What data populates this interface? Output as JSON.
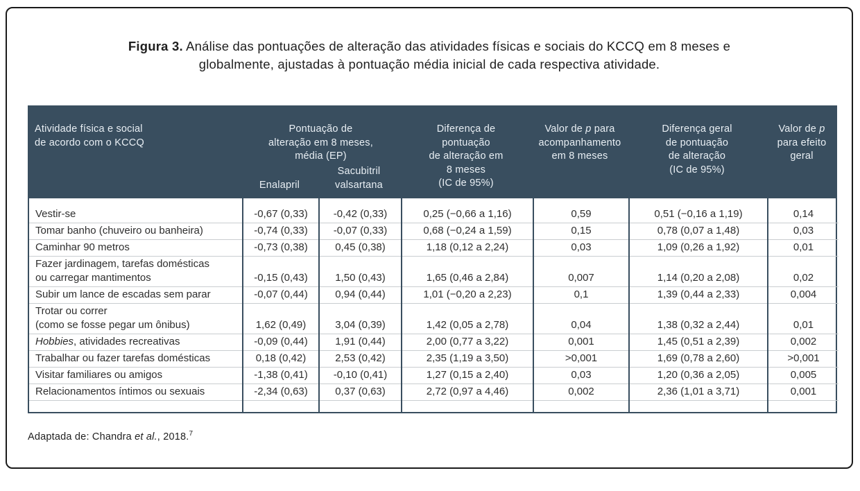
{
  "figure": {
    "title_bold": "Figura 3.",
    "title_line1_rest": " Análise das pontuações de alteração das atividades físicas e sociais do KCCQ em 8 meses e",
    "title_line2": "globalmente, ajustadas à pontuação média inicial de cada respectiva atividade.",
    "source_prefix": "Adaptada de: Chandra ",
    "source_italic": "et al.",
    "source_suffix": ", 2018.",
    "source_superscript": "7"
  },
  "colors": {
    "card_border": "#1a1a1a",
    "header_bg": "#394e5f",
    "header_text": "#e9eff4",
    "body_text": "#2e2e2e",
    "grid_dark": "#394e5f",
    "row_line": "#c9cdd0",
    "title_text": "#1f1f1f"
  },
  "table": {
    "header": {
      "activity": "Atividade física e social\nde acordo com o KCCQ",
      "group_score": "Pontuação de\nalteração em 8 meses,\nmédia (EP)",
      "sub_enalapril": "Enalapril",
      "sub_sacubitril": "Sacubitril\nvalsartana",
      "diff_8m": "Diferença de\npontuação\nde alteração em\n8 meses\n(IC de 95%)",
      "p_followup_prefix": "Valor de ",
      "p_followup_italic": "p",
      "p_followup_suffix": " para\nacompanhamento\nem 8 meses",
      "diff_overall": "Diferença geral\nde pontuação\nde alteração\n(IC de 95%)",
      "p_overall_prefix": "Valor de ",
      "p_overall_italic": "p",
      "p_overall_suffix": "\npara efeito\ngeral"
    },
    "rows": [
      {
        "activity_segments": [
          {
            "text": "Vestir-se",
            "italic": false
          }
        ],
        "enalapril": "-0,67 (0,33)",
        "sacubitril": "-0,42 (0,33)",
        "diff_8m": "0,25 (−0,66 a 1,16)",
        "p_followup": "0,59",
        "diff_overall": "0,51 (−0,16 a 1,19)",
        "p_overall": "0,14"
      },
      {
        "activity_segments": [
          {
            "text": "Tomar banho (chuveiro ou banheira)",
            "italic": false
          }
        ],
        "enalapril": "-0,74 (0,33)",
        "sacubitril": "-0,07 (0,33)",
        "diff_8m": "0,68 (−0,24 a 1,59)",
        "p_followup": "0,15",
        "diff_overall": "0,78 (0,07 a 1,48)",
        "p_overall": "0,03"
      },
      {
        "activity_segments": [
          {
            "text": "Caminhar 90 metros",
            "italic": false
          }
        ],
        "enalapril": "-0,73 (0,38)",
        "sacubitril": "0,45 (0,38)",
        "diff_8m": "1,18 (0,12 a 2,24)",
        "p_followup": "0,03",
        "diff_overall": "1,09 (0,26 a 1,92)",
        "p_overall": "0,01"
      },
      {
        "activity_segments": [
          {
            "text": "Fazer jardinagem, tarefas domésticas\nou carregar mantimentos",
            "italic": false
          }
        ],
        "enalapril": "-0,15 (0,43)",
        "sacubitril": "1,50 (0,43)",
        "diff_8m": "1,65 (0,46 a 2,84)",
        "p_followup": "0,007",
        "diff_overall": "1,14 (0,20 a 2,08)",
        "p_overall": "0,02"
      },
      {
        "activity_segments": [
          {
            "text": "Subir um lance de escadas sem parar",
            "italic": false
          }
        ],
        "enalapril": "-0,07 (0,44)",
        "sacubitril": "0,94 (0,44)",
        "diff_8m": "1,01 (−0,20 a 2,23)",
        "p_followup": "0,1",
        "diff_overall": "1,39 (0,44 a 2,33)",
        "p_overall": "0,004"
      },
      {
        "activity_segments": [
          {
            "text": "Trotar ou correr\n(como se fosse pegar um ônibus)",
            "italic": false
          }
        ],
        "enalapril": "1,62 (0,49)",
        "sacubitril": "3,04 (0,39)",
        "diff_8m": "1,42 (0,05 a 2,78)",
        "p_followup": "0,04",
        "diff_overall": "1,38 (0,32 a 2,44)",
        "p_overall": "0,01"
      },
      {
        "activity_segments": [
          {
            "text": "Hobbies",
            "italic": true
          },
          {
            "text": ", atividades recreativas",
            "italic": false
          }
        ],
        "enalapril": "-0,09 (0,44)",
        "sacubitril": "1,91 (0,44)",
        "diff_8m": "2,00 (0,77 a 3,22)",
        "p_followup": "0,001",
        "diff_overall": "1,45 (0,51 a 2,39)",
        "p_overall": "0,002"
      },
      {
        "activity_segments": [
          {
            "text": "Trabalhar ou fazer tarefas domésticas",
            "italic": false
          }
        ],
        "enalapril": "0,18 (0,42)",
        "sacubitril": "2,53 (0,42)",
        "diff_8m": "2,35 (1,19 a 3,50)",
        "p_followup": ">0,001",
        "diff_overall": "1,69 (0,78 a 2,60)",
        "p_overall": ">0,001"
      },
      {
        "activity_segments": [
          {
            "text": "Visitar familiares ou amigos",
            "italic": false
          }
        ],
        "enalapril": "-1,38 (0,41)",
        "sacubitril": "-0,10 (0,41)",
        "diff_8m": "1,27 (0,15 a 2,40)",
        "p_followup": "0,03",
        "diff_overall": "1,20 (0,36 a 2,05)",
        "p_overall": "0,005"
      },
      {
        "activity_segments": [
          {
            "text": "Relacionamentos íntimos ou sexuais",
            "italic": false
          }
        ],
        "enalapril": "-2,34 (0,63)",
        "sacubitril": "0,37 (0,63)",
        "diff_8m": "2,72 (0,97 a 4,46)",
        "p_followup": "0,002",
        "diff_overall": "2,36 (1,01 a 3,71)",
        "p_overall": "0,001"
      }
    ]
  }
}
